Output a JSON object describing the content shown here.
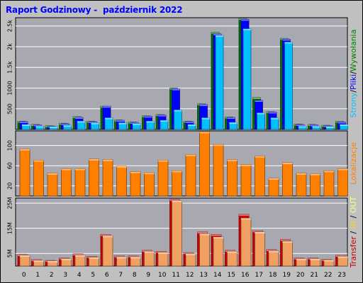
{
  "title": "Raport Godzinowy -  październik 2022",
  "colors": {
    "background": "#c0c0c0",
    "plot_background": "#a8a8b0",
    "grid": "#ffffff",
    "title": "#0000ff",
    "strony": "#00c0ff",
    "pliki": "#0000ff",
    "wywolania": "#007000",
    "lokalizacje": "#ff8000",
    "transfer": "#c00000",
    "in": "#ffd020",
    "out": "#ffff80"
  },
  "legends": {
    "top": [
      {
        "text": "Strony",
        "color": "#00c0ff"
      },
      {
        "text": "/",
        "color": "#000000"
      },
      {
        "text": "Pliki",
        "color": "#0000ff"
      },
      {
        "text": "/",
        "color": "#000000"
      },
      {
        "text": "Wywołania",
        "color": "#008000"
      }
    ],
    "middle": [
      {
        "text": "Lokalizacje",
        "color": "#ff8000"
      }
    ],
    "bottom": [
      {
        "text": "Transfer",
        "color": "#c00000"
      },
      {
        "text": " / ",
        "color": "#000000"
      },
      {
        "text": "IN",
        "color": "#ffd020"
      },
      {
        "text": " / ",
        "color": "#000000"
      },
      {
        "text": "OUT",
        "color": "#ffff80"
      }
    ]
  },
  "chart_data": [
    {
      "type": "bar",
      "name": "requests",
      "categories": [
        "0",
        "1",
        "2",
        "3",
        "4",
        "5",
        "6",
        "7",
        "8",
        "9",
        "10",
        "11",
        "12",
        "13",
        "14",
        "15",
        "16",
        "17",
        "18",
        "19",
        "20",
        "21",
        "22",
        "23"
      ],
      "ylim": [
        0,
        2700
      ],
      "yticks": [
        {
          "label": "500",
          "value": 500
        },
        {
          "label": "1000",
          "value": 1000
        },
        {
          "label": "1.5k",
          "value": 1500
        },
        {
          "label": "2k",
          "value": 2000
        },
        {
          "label": "2.5k",
          "value": 2500
        }
      ],
      "series": [
        {
          "name": "Wywołania",
          "color": "#007000",
          "values": [
            200,
            120,
            90,
            150,
            310,
            200,
            560,
            230,
            180,
            330,
            360,
            1000,
            200,
            620,
            2350,
            300,
            2680,
            770,
            430,
            2200,
            130,
            120,
            100,
            200
          ]
        },
        {
          "name": "Pliki",
          "color": "#0000ff",
          "values": [
            190,
            110,
            80,
            140,
            290,
            190,
            560,
            220,
            170,
            320,
            350,
            980,
            190,
            600,
            2310,
            290,
            2660,
            700,
            420,
            2180,
            120,
            110,
            90,
            180
          ]
        },
        {
          "name": "Strony",
          "color": "#00c0ff",
          "values": [
            120,
            80,
            70,
            100,
            200,
            160,
            280,
            160,
            140,
            200,
            220,
            470,
            120,
            280,
            2270,
            170,
            2430,
            400,
            280,
            2110,
            80,
            80,
            70,
            120
          ]
        }
      ]
    },
    {
      "type": "bar",
      "name": "hosts",
      "categories": [
        "0",
        "1",
        "2",
        "3",
        "4",
        "5",
        "6",
        "7",
        "8",
        "9",
        "10",
        "11",
        "12",
        "13",
        "14",
        "15",
        "16",
        "17",
        "18",
        "19",
        "20",
        "21",
        "22",
        "23"
      ],
      "ylim": [
        0,
        129
      ],
      "yticks": [
        {
          "label": "20",
          "value": 20
        },
        {
          "label": "60",
          "value": 60
        },
        {
          "label": "100",
          "value": 100
        }
      ],
      "series": [
        {
          "name": "Lokalizacje",
          "color": "#ff8000",
          "values": [
            93,
            71,
            45,
            54,
            54,
            73,
            72,
            59,
            48,
            46,
            71,
            50,
            82,
            127,
            102,
            72,
            62,
            79,
            35,
            66,
            45,
            44,
            50,
            54
          ]
        }
      ]
    },
    {
      "type": "bar",
      "name": "transfer",
      "categories": [
        "0",
        "1",
        "2",
        "3",
        "4",
        "5",
        "6",
        "7",
        "8",
        "9",
        "10",
        "11",
        "12",
        "13",
        "14",
        "15",
        "16",
        "17",
        "18",
        "19",
        "20",
        "21",
        "22",
        "23"
      ],
      "ylim": [
        0,
        27
      ],
      "yticks": [
        {
          "label": "5M",
          "value": 5
        },
        {
          "label": "15M",
          "value": 15
        },
        {
          "label": "25M",
          "value": 25
        }
      ],
      "series": [
        {
          "name": "Transfer",
          "color": "#d00000",
          "values": [
            4.5,
            2.5,
            2.2,
            3.2,
            4.8,
            3.8,
            12.5,
            4,
            4,
            6.2,
            5.8,
            26.5,
            5.3,
            13.5,
            12.5,
            6.2,
            20.5,
            14,
            6.5,
            10.5,
            3.2,
            3.2,
            2.6,
            4.2
          ]
        },
        {
          "name": "OUT",
          "color": "#f0a060",
          "values": [
            4.2,
            2.2,
            2,
            2.9,
            4.3,
            3.4,
            12,
            3.6,
            3.6,
            5.8,
            5.4,
            26,
            4.9,
            12.8,
            11.5,
            5.8,
            19,
            13.5,
            6,
            9.8,
            2.9,
            2.9,
            2.4,
            3.8
          ]
        }
      ]
    }
  ]
}
